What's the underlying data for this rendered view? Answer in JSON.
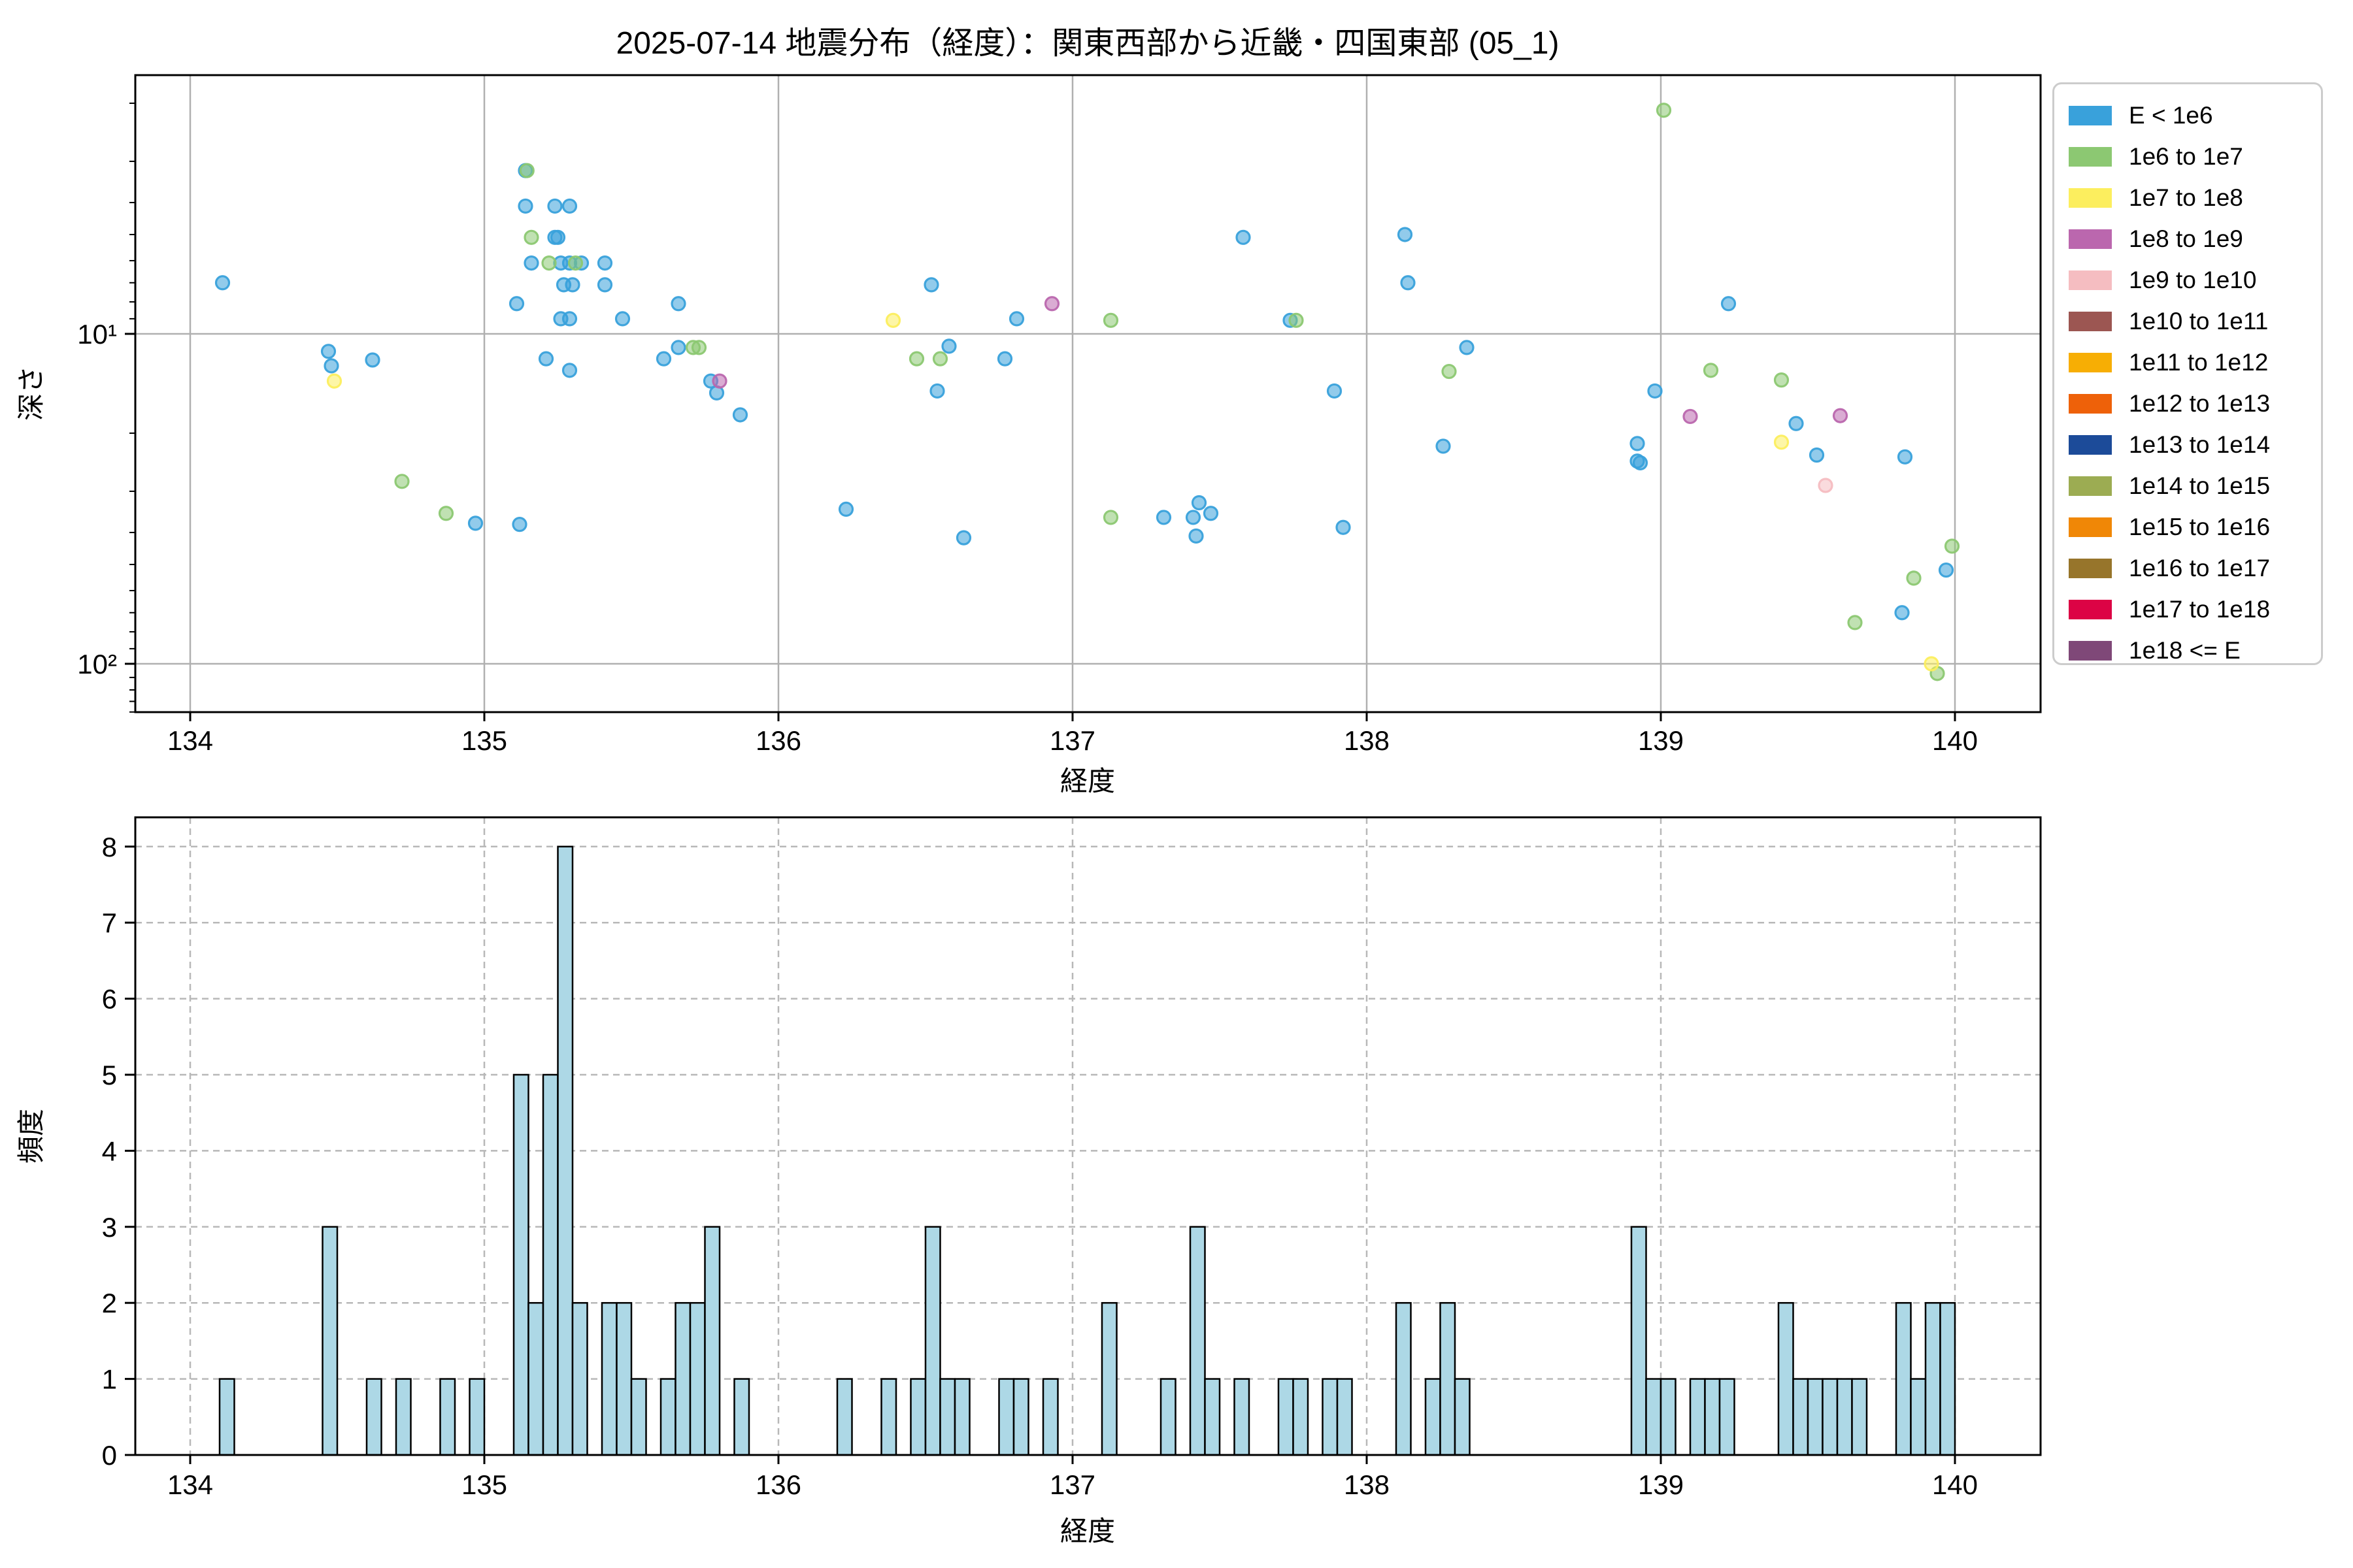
{
  "title": "2025-07-14 地震分布（経度）：関東西部から近畿・四国東部 (05_1)",
  "legend": {
    "items": [
      {
        "label": "E < 1e6",
        "color": "#39A1DB"
      },
      {
        "label": "1e6 to 1e7",
        "color": "#8CC872"
      },
      {
        "label": "1e7 to 1e8",
        "color": "#FCEE5E"
      },
      {
        "label": "1e8 to 1e9",
        "color": "#BB67AE"
      },
      {
        "label": "1e9 to 1e10",
        "color": "#F5BDC1"
      },
      {
        "label": "1e10 to 1e11",
        "color": "#9C5652"
      },
      {
        "label": "1e11 to 1e12",
        "color": "#F7AE04"
      },
      {
        "label": "1e12 to 1e13",
        "color": "#EE6109"
      },
      {
        "label": "1e13 to 1e14",
        "color": "#1C4B99"
      },
      {
        "label": "1e14 to 1e15",
        "color": "#9CAC52"
      },
      {
        "label": "1e15 to 1e16",
        "color": "#F08706"
      },
      {
        "label": "1e16 to 1e17",
        "color": "#97752B"
      },
      {
        "label": "1e17 to 1e18",
        "color": "#DC0345"
      },
      {
        "label": "1e18 <= E",
        "color": "#7F4878"
      }
    ]
  },
  "chart_data": [
    {
      "type": "scatter",
      "title": "2025-07-14 地震分布（経度）：関東西部から近畿・四国東部 (05_1)",
      "xlabel": "経度",
      "ylabel": "深さ",
      "xlim": [
        133.81,
        140.29
      ],
      "ylim": [
        1.64,
        140
      ],
      "y_scale": "log-inverted",
      "grid": true,
      "x_ticks": [
        134,
        135,
        136,
        137,
        138,
        139,
        140
      ],
      "y_ticks": [
        {
          "v": 10,
          "label": "10¹"
        },
        {
          "v": 100,
          "label": "10²"
        }
      ],
      "y_minor_ticks": [
        2,
        3,
        4,
        5,
        6,
        7,
        8,
        9,
        20,
        30,
        40,
        50,
        60,
        70,
        80,
        90,
        110,
        120,
        130,
        140
      ],
      "legend_position": "outside upper right",
      "series": [
        {
          "name": "E < 1e6",
          "color": "#39A1DB",
          "points": [
            [
              134.11,
              7.0
            ],
            [
              134.47,
              11.3
            ],
            [
              134.48,
              12.5
            ],
            [
              134.62,
              12.0
            ],
            [
              134.97,
              37.5
            ],
            [
              135.14,
              3.2
            ],
            [
              135.14,
              4.1
            ],
            [
              135.24,
              4.1
            ],
            [
              135.29,
              4.1
            ],
            [
              135.24,
              5.1
            ],
            [
              135.25,
              5.1
            ],
            [
              135.16,
              6.1
            ],
            [
              135.26,
              6.1
            ],
            [
              135.29,
              6.1
            ],
            [
              135.33,
              6.1
            ],
            [
              135.41,
              6.1
            ],
            [
              135.27,
              7.1
            ],
            [
              135.3,
              7.1
            ],
            [
              135.41,
              7.1
            ],
            [
              135.11,
              8.1
            ],
            [
              135.66,
              8.1
            ],
            [
              135.26,
              9.0
            ],
            [
              135.29,
              9.0
            ],
            [
              135.47,
              9.0
            ],
            [
              135.66,
              11.0
            ],
            [
              135.61,
              11.9
            ],
            [
              135.21,
              11.9
            ],
            [
              135.29,
              12.9
            ],
            [
              135.77,
              13.9
            ],
            [
              135.79,
              15.1
            ],
            [
              135.12,
              37.8
            ],
            [
              135.87,
              17.6
            ],
            [
              136.23,
              34.0
            ],
            [
              136.52,
              7.1
            ],
            [
              136.81,
              9.0
            ],
            [
              136.58,
              10.9
            ],
            [
              136.77,
              11.9
            ],
            [
              136.54,
              14.9
            ],
            [
              136.63,
              41.5
            ],
            [
              137.31,
              36.0
            ],
            [
              137.41,
              36.0
            ],
            [
              137.43,
              32.5
            ],
            [
              137.47,
              35.0
            ],
            [
              137.42,
              41.0
            ],
            [
              137.58,
              5.1
            ],
            [
              137.74,
              9.1
            ],
            [
              137.89,
              14.9
            ],
            [
              137.92,
              38.6
            ],
            [
              138.13,
              5.0
            ],
            [
              138.14,
              7.0
            ],
            [
              138.26,
              21.9
            ],
            [
              138.34,
              11.0
            ],
            [
              138.92,
              21.5
            ],
            [
              138.92,
              24.3
            ],
            [
              138.93,
              24.6
            ],
            [
              138.98,
              14.9
            ],
            [
              139.23,
              8.1
            ],
            [
              139.46,
              18.7
            ],
            [
              139.53,
              23.3
            ],
            [
              139.82,
              70.0
            ],
            [
              139.83,
              23.6
            ],
            [
              139.97,
              52.0
            ]
          ]
        },
        {
          "name": "1e6 to 1e7",
          "color": "#8CC872",
          "points": [
            [
              134.72,
              28.0
            ],
            [
              134.87,
              35.0
            ],
            [
              135.145,
              3.2
            ],
            [
              135.16,
              5.1
            ],
            [
              135.22,
              6.1
            ],
            [
              135.31,
              6.1
            ],
            [
              135.71,
              11.0
            ],
            [
              135.73,
              11.0
            ],
            [
              136.47,
              11.9
            ],
            [
              136.55,
              11.9
            ],
            [
              137.13,
              9.1
            ],
            [
              137.13,
              36.0
            ],
            [
              137.76,
              9.1
            ],
            [
              138.28,
              13.0
            ],
            [
              139.01,
              2.1
            ],
            [
              139.17,
              12.9
            ],
            [
              139.41,
              13.8
            ],
            [
              139.66,
              75.0
            ],
            [
              139.86,
              55.0
            ],
            [
              139.94,
              107.0
            ],
            [
              139.99,
              44.0
            ]
          ]
        },
        {
          "name": "1e7 to 1e8",
          "color": "#FCEE5E",
          "points": [
            [
              134.49,
              13.9
            ],
            [
              136.39,
              9.1
            ],
            [
              139.41,
              21.3
            ],
            [
              139.92,
              100.0
            ]
          ]
        },
        {
          "name": "1e8 to 1e9",
          "color": "#BB67AE",
          "points": [
            [
              135.8,
              13.9
            ],
            [
              136.93,
              8.1
            ],
            [
              139.1,
              17.8
            ],
            [
              139.61,
              17.7
            ]
          ]
        },
        {
          "name": "1e9 to 1e10",
          "color": "#F5BDC1",
          "points": [
            [
              139.56,
              28.8
            ]
          ]
        },
        {
          "name": "1e10 to 1e11",
          "color": "#9C5652",
          "points": []
        },
        {
          "name": "1e11 to 1e12",
          "color": "#F7AE04",
          "points": []
        },
        {
          "name": "1e12 to 1e13",
          "color": "#EE6109",
          "points": []
        },
        {
          "name": "1e13 to 1e14",
          "color": "#1C4B99",
          "points": []
        },
        {
          "name": "1e14 to 1e15",
          "color": "#9CAC52",
          "points": []
        },
        {
          "name": "1e15 to 1e16",
          "color": "#F08706",
          "points": []
        },
        {
          "name": "1e16 to 1e17",
          "color": "#97752B",
          "points": []
        },
        {
          "name": "1e17 to 1e18",
          "color": "#DC0345",
          "points": []
        },
        {
          "name": "1e18 <= E",
          "color": "#7F4878",
          "points": []
        }
      ]
    },
    {
      "type": "bar",
      "xlabel": "経度",
      "ylabel": "頻度",
      "xlim": [
        133.81,
        140.29
      ],
      "ylim": [
        0,
        8.39
      ],
      "bin_width": 0.05,
      "bar_color": "#ADD8E6",
      "bar_edge": "#000000",
      "grid": "dashed",
      "x_ticks": [
        134,
        135,
        136,
        137,
        138,
        139,
        140
      ],
      "y_ticks": [
        0,
        1,
        2,
        3,
        4,
        5,
        6,
        7,
        8
      ],
      "bins": [
        [
          134.1,
          1
        ],
        [
          134.45,
          3
        ],
        [
          134.6,
          1
        ],
        [
          134.7,
          1
        ],
        [
          134.85,
          1
        ],
        [
          134.95,
          1
        ],
        [
          135.1,
          5
        ],
        [
          135.15,
          2
        ],
        [
          135.2,
          5
        ],
        [
          135.25,
          8
        ],
        [
          135.3,
          2
        ],
        [
          135.4,
          2
        ],
        [
          135.45,
          2
        ],
        [
          135.5,
          1
        ],
        [
          135.6,
          1
        ],
        [
          135.65,
          2
        ],
        [
          135.7,
          2
        ],
        [
          135.75,
          3
        ],
        [
          135.85,
          1
        ],
        [
          136.2,
          1
        ],
        [
          136.35,
          1
        ],
        [
          136.45,
          1
        ],
        [
          136.5,
          3
        ],
        [
          136.55,
          1
        ],
        [
          136.6,
          1
        ],
        [
          136.75,
          1
        ],
        [
          136.8,
          1
        ],
        [
          136.9,
          1
        ],
        [
          137.1,
          2
        ],
        [
          137.3,
          1
        ],
        [
          137.4,
          3
        ],
        [
          137.45,
          1
        ],
        [
          137.55,
          1
        ],
        [
          137.7,
          1
        ],
        [
          137.75,
          1
        ],
        [
          137.85,
          1
        ],
        [
          137.9,
          1
        ],
        [
          138.1,
          2
        ],
        [
          138.2,
          1
        ],
        [
          138.25,
          2
        ],
        [
          138.3,
          1
        ],
        [
          138.9,
          3
        ],
        [
          138.95,
          1
        ],
        [
          139.0,
          1
        ],
        [
          139.1,
          1
        ],
        [
          139.15,
          1
        ],
        [
          139.2,
          1
        ],
        [
          139.4,
          2
        ],
        [
          139.45,
          1
        ],
        [
          139.5,
          1
        ],
        [
          139.55,
          1
        ],
        [
          139.6,
          1
        ],
        [
          139.65,
          1
        ],
        [
          139.8,
          2
        ],
        [
          139.85,
          1
        ],
        [
          139.9,
          2
        ],
        [
          139.95,
          2
        ]
      ]
    }
  ]
}
